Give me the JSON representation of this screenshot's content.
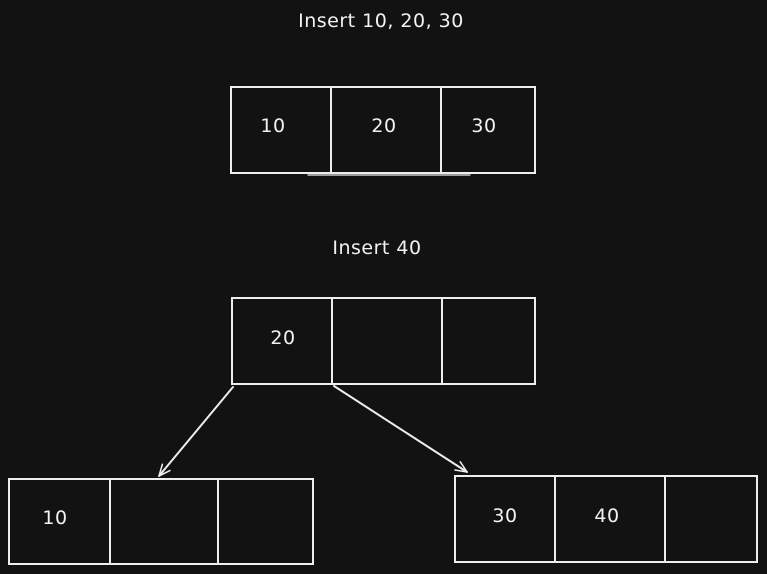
{
  "diagram": {
    "step1_title": "Insert 10, 20, 30",
    "step2_title": "Insert 40",
    "node_full": [
      "10",
      "20",
      "30"
    ],
    "root": [
      "20",
      "",
      ""
    ],
    "left_child": [
      "10",
      "",
      ""
    ],
    "right_child": [
      "30",
      "40",
      ""
    ]
  },
  "style": {
    "background": "#121212",
    "stroke": "#eeeeee",
    "text": "#f2f2f2"
  }
}
